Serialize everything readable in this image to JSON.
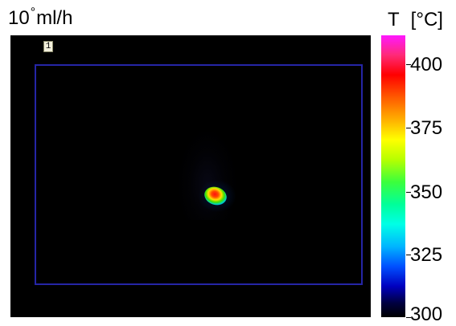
{
  "header": {
    "flow_rate_number": "10",
    "degree_mark": "°",
    "flow_rate_unit": "ml/h"
  },
  "image": {
    "roi_label": "1"
  },
  "colorbar": {
    "symbol": "T",
    "unit": "[°C]",
    "ticks": [
      "400",
      "375",
      "350",
      "325",
      "300"
    ],
    "colors": [
      "#ff18ff",
      "#ff0000",
      "#ffff00",
      "#3cff3c",
      "#00ffe6",
      "#0050ff",
      "#000000"
    ],
    "range": [
      300,
      410
    ]
  }
}
